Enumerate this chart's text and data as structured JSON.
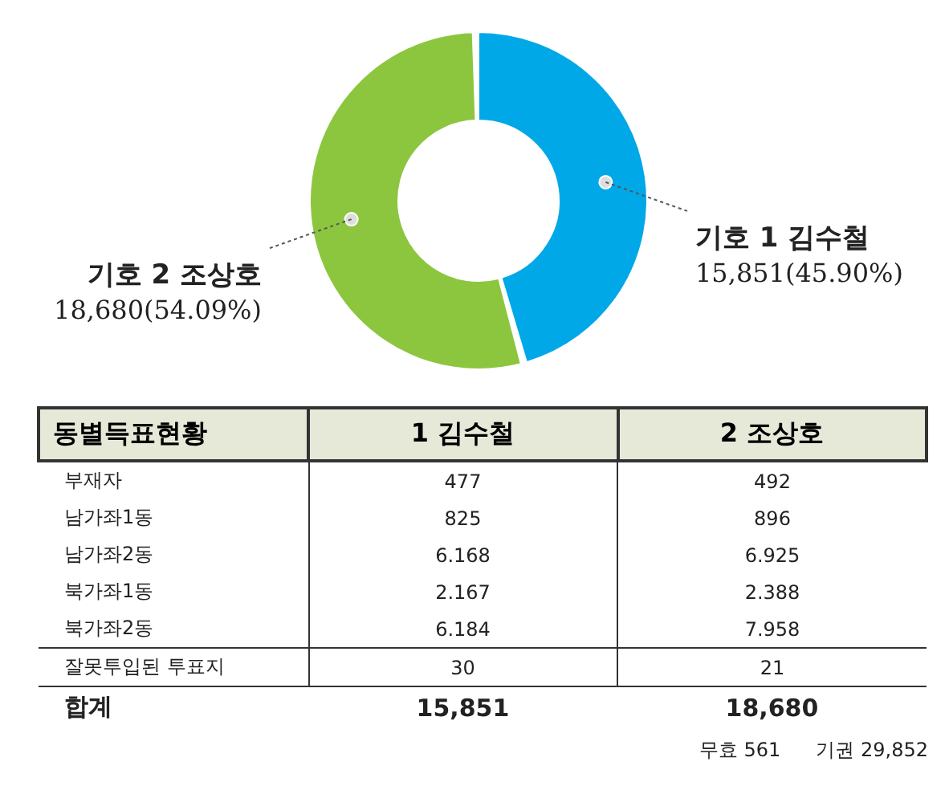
{
  "chart_data": [
    {
      "type": "donut",
      "categories": [
        "기호 1 김수철",
        "기호 2 조상호"
      ],
      "values": [
        15851,
        18680
      ],
      "colors": [
        "#00a8e8",
        "#8cc63f"
      ],
      "value_labels": [
        "15,851(45.90%)",
        "18,680(54.09%)"
      ]
    },
    {
      "type": "other",
      "ylabel": "동별득표현황",
      "categories": [
        "1 김수철",
        "2 조상호"
      ],
      "y_categories": [
        "부재자",
        "남가좌1동",
        "남가좌2동",
        "북가좌1동",
        "북가좌2동",
        "잘못투입된 투표지",
        "합계"
      ],
      "cell_labels": [
        [
          "477",
          "492"
        ],
        [
          "825",
          "896"
        ],
        [
          "6.168",
          "6.925"
        ],
        [
          "2.167",
          "2.388"
        ],
        [
          "6.184",
          "7.958"
        ],
        [
          "30",
          "21"
        ],
        [
          "15,851",
          "18,680"
        ]
      ],
      "annotations": [
        "무효 561",
        "기권 29,852"
      ]
    }
  ]
}
